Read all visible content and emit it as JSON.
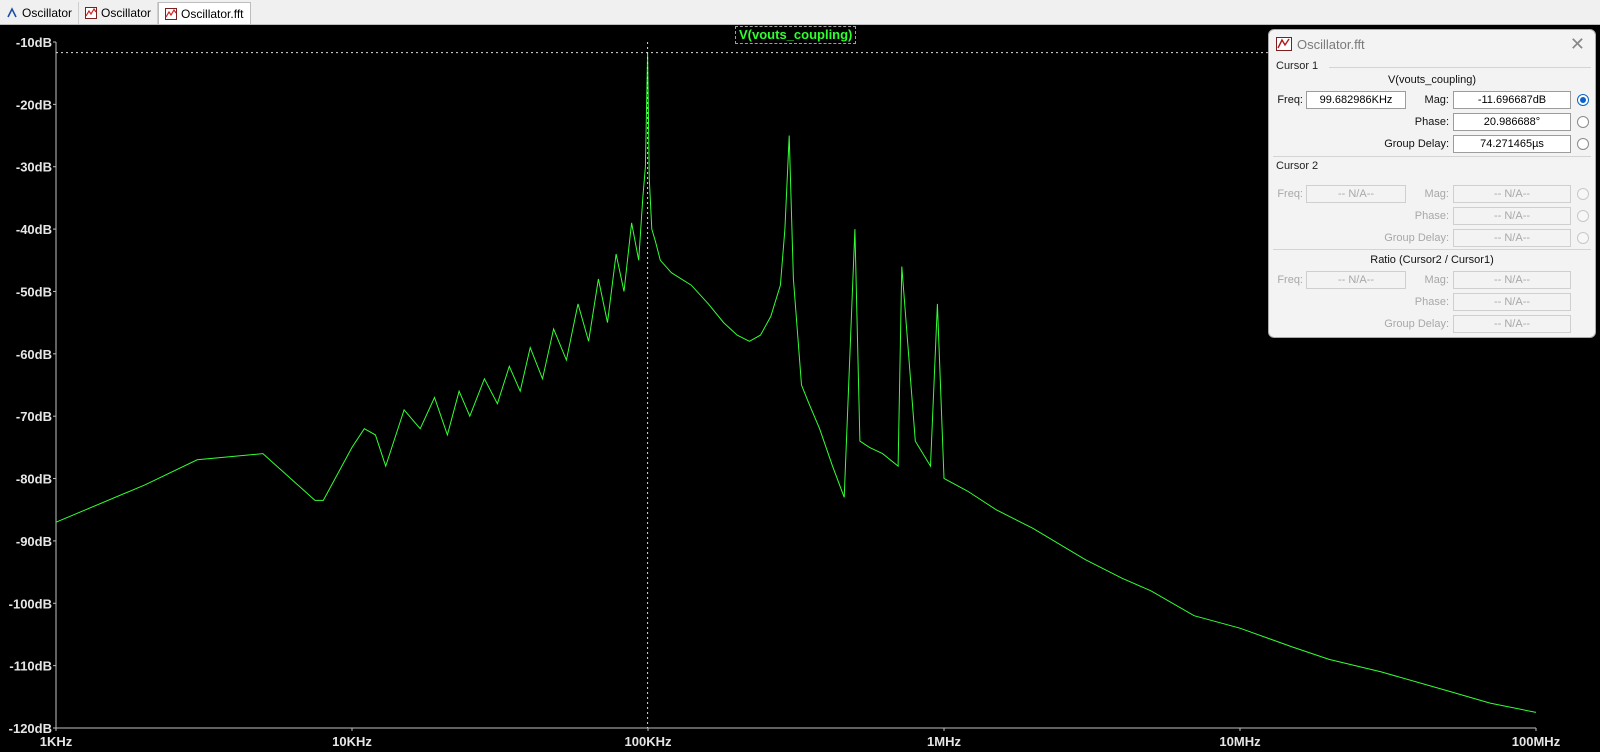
{
  "tabs": [
    {
      "label": "Oscillator",
      "icon": "schematic-icon"
    },
    {
      "label": "Oscillator",
      "icon": "waveform-icon"
    },
    {
      "label": "Oscillator.fft",
      "icon": "fft-waveform-icon"
    }
  ],
  "colors": {
    "trace": "#33ff33",
    "axis": "#e6e6e6",
    "background": "#000000"
  },
  "chart_data": {
    "type": "line",
    "title": "V(vouts_coupling)",
    "xscale": "log",
    "xlim": [
      1000,
      100000000
    ],
    "ylim": [
      -120,
      -10
    ],
    "xticks": [
      "1KHz",
      "10KHz",
      "100KHz",
      "1MHz",
      "10MHz",
      "100MHz"
    ],
    "yticks": [
      "-10dB",
      "-20dB",
      "-30dB",
      "-40dB",
      "-50dB",
      "-60dB",
      "-70dB",
      "-80dB",
      "-90dB",
      "-100dB",
      "-110dB",
      "-120dB"
    ],
    "ytick_values": [
      -10,
      -20,
      -30,
      -40,
      -50,
      -60,
      -70,
      -80,
      -90,
      -100,
      -110,
      -120
    ],
    "xtick_values": [
      1000,
      10000,
      100000,
      1000000,
      10000000,
      100000000
    ],
    "cursor": {
      "freq_hz": 99682.986,
      "mag_db": -11.696687
    },
    "series": [
      {
        "name": "V(vouts_coupling)",
        "x": [
          1000,
          2000,
          3000,
          5000,
          7500,
          8000,
          10000,
          11000,
          12000,
          13000,
          15000,
          17000,
          19000,
          21000,
          23000,
          25000,
          28000,
          31000,
          34000,
          37000,
          40000,
          44000,
          48000,
          53000,
          58000,
          63000,
          68000,
          73000,
          78000,
          83000,
          88000,
          93000,
          96000,
          98000,
          99683,
          101000,
          103000,
          106000,
          110000,
          120000,
          140000,
          160000,
          180000,
          200000,
          220000,
          240000,
          260000,
          280000,
          290000,
          300000,
          310000,
          330000,
          350000,
          380000,
          420000,
          460000,
          500000,
          520000,
          560000,
          620000,
          700000,
          720000,
          800000,
          900000,
          950000,
          1000000,
          1200000,
          1500000,
          2000000,
          3000000,
          4000000,
          5000000,
          7000000,
          10000000,
          15000000,
          20000000,
          30000000,
          50000000,
          70000000,
          100000000
        ],
        "y": [
          -87,
          -81,
          -77,
          -76,
          -83.5,
          -83.5,
          -75,
          -72,
          -73,
          -78,
          -69,
          -72,
          -67,
          -73,
          -66,
          -70,
          -64,
          -68,
          -62,
          -66,
          -59,
          -64,
          -56,
          -61,
          -52,
          -58,
          -48,
          -55,
          -44,
          -50,
          -39,
          -45,
          -35,
          -30,
          -11.7,
          -32,
          -40,
          -42,
          -45,
          -47,
          -49,
          -52,
          -55,
          -57,
          -58,
          -57,
          -54,
          -49,
          -40,
          -25,
          -48,
          -65,
          -68,
          -72,
          -78,
          -83,
          -40,
          -74,
          -75,
          -76,
          -78,
          -46,
          -74,
          -78,
          -52,
          -80,
          -82,
          -85,
          -88,
          -93,
          -96,
          -98,
          -102,
          -104,
          -107,
          -109,
          -111,
          -114,
          -116,
          -117.5
        ]
      }
    ]
  },
  "dialog": {
    "title": "Oscillator.fft",
    "cursor1": {
      "heading": "Cursor 1",
      "trace": "V(vouts_coupling)",
      "freq_label": "Freq:",
      "freq": "99.682986KHz",
      "mag_label": "Mag:",
      "mag": "-11.696687dB",
      "phase_label": "Phase:",
      "phase": "20.986688°",
      "gd_label": "Group Delay:",
      "gd": "74.271465µs"
    },
    "cursor2": {
      "heading": "Cursor 2",
      "freq_label": "Freq:",
      "freq": "-- N/A--",
      "mag_label": "Mag:",
      "mag": "-- N/A--",
      "phase_label": "Phase:",
      "phase": "-- N/A--",
      "gd_label": "Group Delay:",
      "gd": "-- N/A--"
    },
    "ratio": {
      "heading": "Ratio (Cursor2 / Cursor1)",
      "freq_label": "Freq:",
      "freq": "-- N/A--",
      "mag_label": "Mag:",
      "mag": "-- N/A--",
      "phase_label": "Phase:",
      "phase": "-- N/A--",
      "gd_label": "Group Delay:",
      "gd": "-- N/A--"
    }
  }
}
